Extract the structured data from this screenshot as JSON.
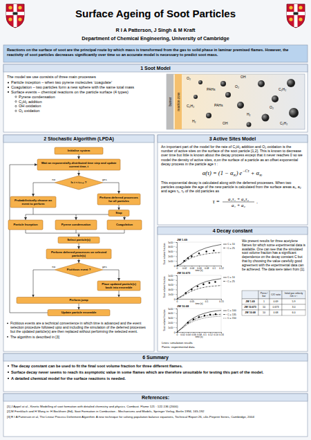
{
  "header": {
    "title": "Surface Ageing of Soot Particles",
    "authors": "R I A Patterson, J Singh & M Kraft",
    "department": "Department of Chemical Engineering, University of Cambridge"
  },
  "intro": "Reactions on the surface of soot are the principal route by which mass is transformed from the gas to solid phase in laminar premixed flames. However, the reactivity of soot particles decreases significantly over time so an accurate model is necessary to predict soot mass.",
  "soot_model": {
    "heading": "1 Soot Model",
    "lead": "The model we use consists of three main processes",
    "bullets": [
      "Particle inception – when two pyrene molecules ‘coagulate’",
      "Coagulation – two particles form a new sphere with the same total mass",
      "Surface events – chemical reactions on the particle surface (4 types)"
    ],
    "sub_bullets": [
      "Pyrene condensation",
      "C₂H₂ addition",
      "OH oxidation",
      "O₂ oxidation"
    ],
    "diagram_labels": [
      "burner",
      "reaction zone"
    ],
    "species": [
      "O₂",
      "OH",
      "PAHs",
      "O₂",
      "C₂H₂",
      "PAHs",
      "C₂H₂",
      "H₂",
      "O₂",
      "H₂",
      "C₂H₂",
      "OH"
    ]
  },
  "algorithm": {
    "heading": "2 Stochastic Algorithm (LPDA)",
    "nodes": [
      "Initialise system",
      "Wait an exponentially-distributed time step and update current time, t",
      "Is t < tₛₜₒₚ ?",
      "Perform deferred processes for all particles",
      "Stop",
      "Probabilistically choose an event to perform",
      "Particle Inception",
      "Pyrene condensation",
      "Coagulation",
      "Select particle(s)",
      "Perform deferred processes on selected particle(s)",
      "Fictitious event ?",
      "Place updated particle(s) back into ensemble",
      "Perform jump",
      "Update particle ensemble"
    ],
    "branch_labels": [
      "no",
      "yes",
      "no",
      "yes"
    ],
    "notes": [
      "Fictitious events are a technical convenience in which time is advanced and the event selection procedure followed upto and including the simulation of the deferred processes but the updated particle(s) are then replaced without performing the selected event.",
      "The algorithm is described in [3]"
    ]
  },
  "active_sites": {
    "heading": "3 Active Sites Model",
    "text1": "An important part of the model for the rate of C₂H₂ addition and O₂ oxidation is the number of active sites on the surface of the soot particle [1,2]. This is known to decrease over time but little is known about the decay process except that it never reaches 0 so we model the density of active sites, α,on the surface of a particle as an offset exponential decay process in the particle age τ :",
    "formula1": [
      "α(τ) = (1 − α",
      "∞",
      ") e",
      "−Cτ",
      " + α",
      "∞"
    ],
    "text2": "This exponential decay is calculated along with the deferred processes. When two particles coagulate the age of the new particle is calculated from the surface areas a₁, a₂ and ages τ₁, τ₂ of the old particles as",
    "formula2": {
      "lhs": "τ =",
      "numerator": "a₁τ₁ + a₂τ₂",
      "denominator": "a₁ + a₂",
      "end": "."
    }
  },
  "decay": {
    "heading": "4 Decay constant",
    "text": "We present results for three acetylene flames for which some experimental data is available. One can see that the simulated soot volume fraction has a significant dependence on the decay constant C but that by choosing the value carefully good agreement with the experimental data can be achieved. The data were taken from [1].",
    "notes": [
      "Lines: simulation results",
      "Points: experimental data."
    ],
    "table": {
      "header": [
        "Press / bar",
        "C/O ratio",
        "Initial gas velocity /cm s⁻¹"
      ],
      "rows": [
        [
          "JW 1.69",
          "1",
          "0.69",
          "5.9"
        ],
        [
          "JW 10.673",
          "10",
          "0.673",
          "3.0"
        ],
        [
          "JW 10.68",
          "10",
          "0.68",
          "6.0"
        ]
      ]
    }
  },
  "chart_data": [
    {
      "type": "line",
      "title": "JW 1.69",
      "x_label": "time (s)",
      "y_label": "Soot volume fraction",
      "xlim": [
        0,
        0.12
      ],
      "xticks": [
        0,
        0.02,
        0.04,
        0.06,
        0.08,
        0.1,
        0.12
      ],
      "ylim": [
        0,
        5e-06
      ],
      "yticks": [
        0,
        {
          "value": 1e-06,
          "label": "1x10⁻⁶"
        },
        {
          "value": 2e-06,
          "label": "2x10⁻⁶"
        },
        {
          "value": 3e-06,
          "label": "3x10⁻⁶"
        },
        {
          "value": 4e-06,
          "label": "4x10⁻⁶"
        },
        {
          "value": 5e-06,
          "label": "5x10⁻⁶"
        }
      ],
      "series": [
        {
          "name": "C = 10",
          "color": "#000000",
          "line_style": "solid",
          "x": [
            0,
            0.01,
            0.02,
            0.03,
            0.04,
            0.06,
            0.08,
            0.1,
            0.12
          ],
          "values": [
            0,
            3e-07,
            1e-06,
            1.7e-06,
            2.3e-06,
            3.2e-06,
            3.8e-06,
            4.2e-06,
            4.5e-06
          ]
        },
        {
          "name": "C = 25",
          "color": "#000000",
          "line_style": "dashed",
          "x": [
            0,
            0.01,
            0.02,
            0.03,
            0.04,
            0.06,
            0.08,
            0.1,
            0.12
          ],
          "values": [
            0,
            2.5e-07,
            8e-07,
            1.3e-06,
            1.7e-06,
            2.2e-06,
            2.5e-06,
            2.7e-06,
            2.8e-06
          ]
        },
        {
          "type": "scatter",
          "marker": "circle",
          "color": "#000000",
          "x": [
            0.02,
            0.03,
            0.04,
            0.06,
            0.08,
            0.1
          ],
          "values": [
            1e-06,
            1.6e-06,
            2e-06,
            2.6e-06,
            3e-06,
            3.2e-06
          ]
        }
      ]
    },
    {
      "type": "line",
      "title": "JW 10.673",
      "x_label": "time (s)",
      "y_label": "Soot volume fraction",
      "xlim": [
        0,
        0.15
      ],
      "xticks": [
        0,
        0.05,
        0.1,
        0.15
      ],
      "ylim": [
        0,
        1e-06
      ],
      "yticks": [
        0,
        {
          "value": 2e-07,
          "label": "2x10⁻⁷"
        },
        {
          "value": 4e-07,
          "label": "4x10⁻⁷"
        },
        {
          "value": 6e-07,
          "label": "6x10⁻⁷"
        },
        {
          "value": 8e-07,
          "label": "8x10⁻⁷"
        },
        {
          "value": 1e-06,
          "label": "1x10⁻⁶"
        }
      ],
      "series": [
        {
          "name": "C = 10",
          "color": "#000000",
          "line_style": "solid",
          "x": [
            0,
            0.02,
            0.04,
            0.06,
            0.08,
            0.1,
            0.12,
            0.15
          ],
          "values": [
            0,
            1.5e-07,
            3.5e-07,
            5.2e-07,
            6.5e-07,
            7.4e-07,
            8e-07,
            8.6e-07
          ]
        },
        {
          "name": "C = 25",
          "color": "#000000",
          "line_style": "dashed",
          "x": [
            0,
            0.02,
            0.04,
            0.06,
            0.08,
            0.1,
            0.12,
            0.15
          ],
          "values": [
            0,
            1.2e-07,
            2.7e-07,
            3.8e-07,
            4.6e-07,
            5.1e-07,
            5.4e-07,
            5.7e-07
          ]
        },
        {
          "type": "scatter",
          "marker": "circle",
          "color": "#000000",
          "x": [
            0.03,
            0.05,
            0.07,
            0.09,
            0.11,
            0.13
          ],
          "values": [
            2.5e-07,
            4e-07,
            5.3e-07,
            6.2e-07,
            6.8e-07,
            7.2e-07
          ]
        }
      ]
    },
    {
      "type": "line",
      "title": "JW 10.68",
      "x_label": "time (s)",
      "y_label": "Soot volume fraction",
      "xlim": [
        0,
        0.16
      ],
      "xticks": [
        0,
        0.02,
        0.04,
        0.06,
        0.08,
        0.1,
        0.12,
        0.14,
        0.16
      ],
      "ylim": [
        0,
        5e-06
      ],
      "yticks": [
        0,
        {
          "value": 1e-06,
          "label": "1x10⁻⁶"
        },
        {
          "value": 2e-06,
          "label": "2x10⁻⁶"
        },
        {
          "value": 3e-06,
          "label": "3x10⁻⁶"
        },
        {
          "value": 4e-06,
          "label": "4x10⁻⁶"
        },
        {
          "value": 5e-06,
          "label": "5x10⁻⁶"
        }
      ],
      "series": [
        {
          "name": "C = 100",
          "color": "#000000",
          "line_style": "solid",
          "x": [
            0,
            0.02,
            0.04,
            0.06,
            0.08,
            0.1,
            0.12,
            0.14,
            0.16
          ],
          "values": [
            0,
            1e-06,
            2.2e-06,
            3e-06,
            3.6e-06,
            4e-06,
            4.3e-06,
            4.5e-06,
            4.6e-06
          ]
        },
        {
          "name": "C = 135",
          "color": "#000000",
          "line_style": "dashed",
          "x": [
            0,
            0.02,
            0.04,
            0.06,
            0.08,
            0.1,
            0.12,
            0.14,
            0.16
          ],
          "values": [
            0,
            9e-07,
            1.9e-06,
            2.6e-06,
            3.1e-06,
            3.4e-06,
            3.6e-06,
            3.7e-06,
            3.8e-06
          ]
        },
        {
          "name": "C = 150",
          "color": "#000000",
          "line_style": "dotted",
          "x": [
            0,
            0.02,
            0.04,
            0.06,
            0.08,
            0.1,
            0.12,
            0.14,
            0.16
          ],
          "values": [
            0,
            8e-07,
            1.7e-06,
            2.3e-06,
            2.7e-06,
            3e-06,
            3.2e-06,
            3.3e-06,
            3.4e-06
          ]
        },
        {
          "type": "scatter",
          "marker": "circle",
          "color": "#000000",
          "x": [
            0.04,
            0.06,
            0.08,
            0.1,
            0.12,
            0.14
          ],
          "values": [
            2e-06,
            2.7e-06,
            3.2e-06,
            3.5e-06,
            3.7e-06,
            3.8e-06
          ]
        }
      ]
    }
  ],
  "summary": {
    "heading": "6 Summary",
    "bullets": [
      "The decay constant can be used to fit the final soot volume fraction for three different flames.",
      "Surface decay never seems to reach its asymptotic value in some flames which are therefore unsuitable for testing this part of the model.",
      "A detailed chemical model for the surface reactions is needed."
    ]
  },
  "references": {
    "heading": "References:",
    "items": [
      "[1] J Appel at al., Kinetic Modelling of soot formation with detailed chemistry and physics. Combust. Flame 121 : 122-136 (2000)",
      "[2] M Frenklach and H Wang in: H Bockhorn (Ed), Soot Formation in Combustion - Mechanisms and Models, Springer Verlag, Berlin 1994, 165-192",
      "[3] R I A Patterson et al, The Linear Process Deferment Algorithm: A new technique for solving population balance equations, Technical Report 26, c4e-Preprint Series, Cambridge, 2004"
    ]
  }
}
